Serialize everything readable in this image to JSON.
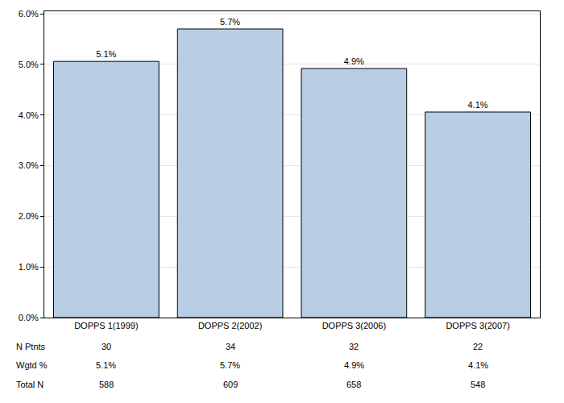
{
  "chart_data": {
    "type": "bar",
    "categories": [
      "DOPPS 1(1999)",
      "DOPPS 2(2002)",
      "DOPPS 3(2006)",
      "DOPPS 3(2007)"
    ],
    "values": [
      5.06,
      5.7,
      4.92,
      4.06
    ],
    "value_labels": [
      "5.1%",
      "5.7%",
      "4.9%",
      "4.1%"
    ],
    "data_labels": true,
    "color": "#b9cde5",
    "ylim": [
      0,
      6.05
    ],
    "yticks": [
      {
        "value": 0,
        "label": "0.0%"
      },
      {
        "value": 1,
        "label": "1.0%"
      },
      {
        "value": 2,
        "label": "2.0%"
      },
      {
        "value": 3,
        "label": "3.0%"
      },
      {
        "value": 4,
        "label": "4.0%"
      },
      {
        "value": 5,
        "label": "5.0%"
      },
      {
        "value": 6,
        "label": "6.0%"
      }
    ],
    "grid": true,
    "table": {
      "rows": [
        {
          "label": "N Ptnts",
          "values": [
            "30",
            "34",
            "32",
            "22"
          ]
        },
        {
          "label": "Wgtd %",
          "values": [
            "5.1%",
            "5.7%",
            "4.9%",
            "4.1%"
          ]
        },
        {
          "label": "Total N",
          "values": [
            "588",
            "609",
            "658",
            "548"
          ]
        }
      ]
    }
  }
}
